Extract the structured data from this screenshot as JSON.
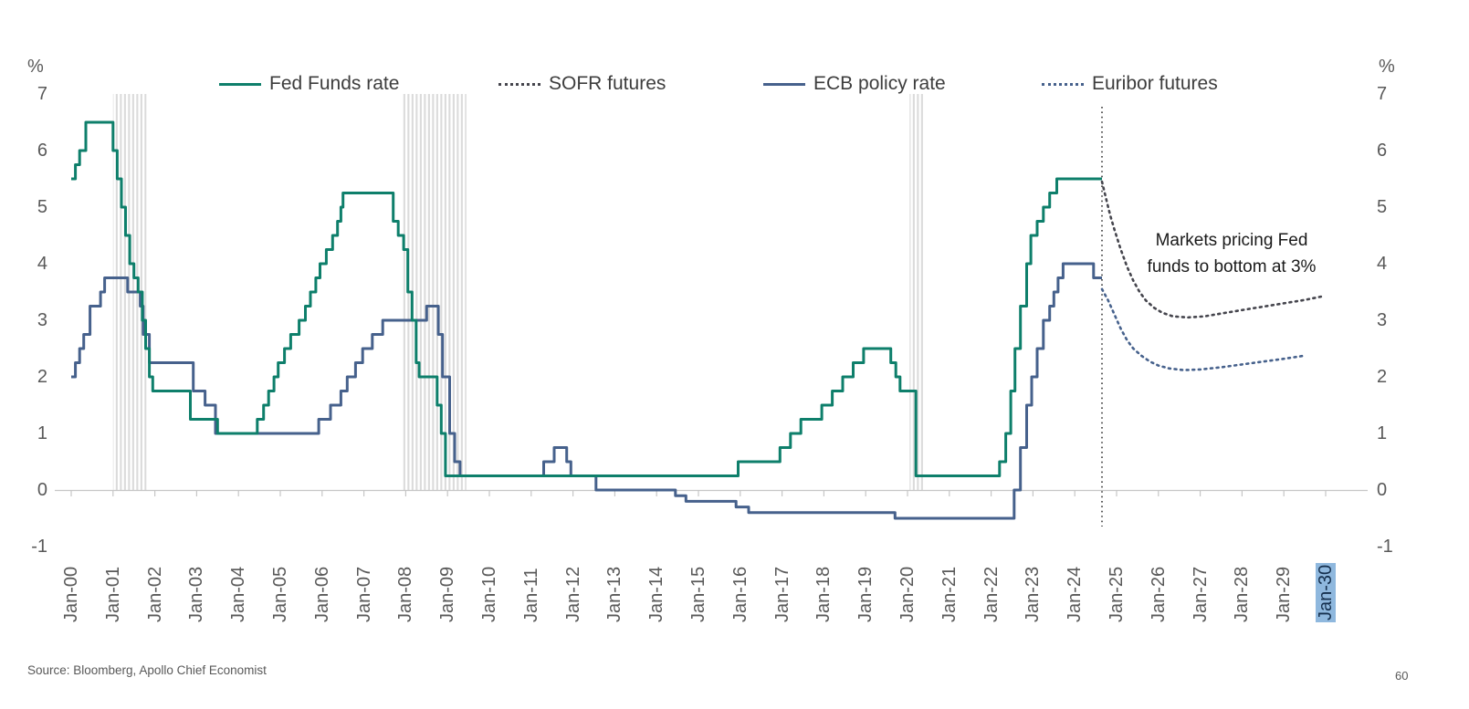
{
  "page": {
    "source_note": "Source: Bloomberg, Apollo Chief Economist",
    "page_number": "60"
  },
  "legend": [
    {
      "label": "Fed Funds rate",
      "style": "solid",
      "color": "#0e7f6b"
    },
    {
      "label": "SOFR futures",
      "style": "dotted",
      "color": "#45454d"
    },
    {
      "label": "ECB policy rate",
      "style": "solid",
      "color": "#46618c"
    },
    {
      "label": "Euribor futures",
      "style": "dotted",
      "color": "#46618c"
    }
  ],
  "annotation": {
    "line1": "Markets pricing Fed",
    "line2": "funds to bottom at 3%"
  },
  "chart_data": {
    "type": "line",
    "y_axis": {
      "unit_label": "%",
      "min": -1,
      "max": 7,
      "ticks": [
        7,
        6,
        5,
        4,
        3,
        2,
        1,
        0,
        -1
      ]
    },
    "x_axis": {
      "ticks": [
        "Jan-00",
        "Jan-01",
        "Jan-02",
        "Jan-03",
        "Jan-04",
        "Jan-05",
        "Jan-06",
        "Jan-07",
        "Jan-08",
        "Jan-09",
        "Jan-10",
        "Jan-11",
        "Jan-12",
        "Jan-13",
        "Jan-14",
        "Jan-15",
        "Jan-16",
        "Jan-17",
        "Jan-18",
        "Jan-19",
        "Jan-20",
        "Jan-21",
        "Jan-22",
        "Jan-23",
        "Jan-24",
        "Jan-25",
        "Jan-26",
        "Jan-27",
        "Jan-28",
        "Jan-29",
        "Jan-30"
      ],
      "highlighted_tick": "Jan-30"
    },
    "recession_bands": [
      [
        2001.0,
        2001.8
      ],
      [
        2007.9,
        2009.45
      ],
      [
        2020.05,
        2020.4
      ]
    ],
    "forecast_divider": 2024.65,
    "grid": "zero-line-only",
    "legend_position": "top",
    "series": [
      {
        "name": "Fed Funds rate",
        "color": "#0e7f6b",
        "style": "solid",
        "step": true,
        "points": [
          [
            2000.0,
            5.5
          ],
          [
            2000.1,
            5.75
          ],
          [
            2000.2,
            6.0
          ],
          [
            2000.35,
            6.5
          ],
          [
            2001.0,
            6.0
          ],
          [
            2001.1,
            5.5
          ],
          [
            2001.2,
            5.0
          ],
          [
            2001.3,
            4.5
          ],
          [
            2001.4,
            4.0
          ],
          [
            2001.5,
            3.75
          ],
          [
            2001.6,
            3.5
          ],
          [
            2001.7,
            3.0
          ],
          [
            2001.78,
            2.5
          ],
          [
            2001.87,
            2.0
          ],
          [
            2001.95,
            1.75
          ],
          [
            2002.85,
            1.25
          ],
          [
            2003.5,
            1.0
          ],
          [
            2004.45,
            1.25
          ],
          [
            2004.6,
            1.5
          ],
          [
            2004.72,
            1.75
          ],
          [
            2004.85,
            2.0
          ],
          [
            2004.95,
            2.25
          ],
          [
            2005.1,
            2.5
          ],
          [
            2005.25,
            2.75
          ],
          [
            2005.45,
            3.0
          ],
          [
            2005.6,
            3.25
          ],
          [
            2005.72,
            3.5
          ],
          [
            2005.85,
            3.75
          ],
          [
            2005.95,
            4.0
          ],
          [
            2006.1,
            4.25
          ],
          [
            2006.25,
            4.5
          ],
          [
            2006.37,
            4.75
          ],
          [
            2006.45,
            5.0
          ],
          [
            2006.5,
            5.25
          ],
          [
            2007.7,
            4.75
          ],
          [
            2007.82,
            4.5
          ],
          [
            2007.95,
            4.25
          ],
          [
            2008.05,
            3.5
          ],
          [
            2008.15,
            3.0
          ],
          [
            2008.25,
            2.25
          ],
          [
            2008.32,
            2.0
          ],
          [
            2008.75,
            1.5
          ],
          [
            2008.85,
            1.0
          ],
          [
            2008.95,
            0.25
          ],
          [
            2015.95,
            0.5
          ],
          [
            2016.95,
            0.75
          ],
          [
            2017.2,
            1.0
          ],
          [
            2017.45,
            1.25
          ],
          [
            2017.95,
            1.5
          ],
          [
            2018.2,
            1.75
          ],
          [
            2018.45,
            2.0
          ],
          [
            2018.7,
            2.25
          ],
          [
            2018.95,
            2.5
          ],
          [
            2019.6,
            2.25
          ],
          [
            2019.72,
            2.0
          ],
          [
            2019.82,
            1.75
          ],
          [
            2020.2,
            0.25
          ],
          [
            2022.2,
            0.5
          ],
          [
            2022.35,
            1.0
          ],
          [
            2022.47,
            1.75
          ],
          [
            2022.57,
            2.5
          ],
          [
            2022.7,
            3.25
          ],
          [
            2022.85,
            4.0
          ],
          [
            2022.95,
            4.5
          ],
          [
            2023.1,
            4.75
          ],
          [
            2023.25,
            5.0
          ],
          [
            2023.4,
            5.25
          ],
          [
            2023.57,
            5.5
          ],
          [
            2024.65,
            5.5
          ]
        ]
      },
      {
        "name": "SOFR futures",
        "color": "#45454d",
        "style": "dotted",
        "step": false,
        "points": [
          [
            2024.65,
            5.45
          ],
          [
            2024.75,
            5.15
          ],
          [
            2024.85,
            4.85
          ],
          [
            2024.95,
            4.6
          ],
          [
            2025.1,
            4.25
          ],
          [
            2025.25,
            3.95
          ],
          [
            2025.4,
            3.7
          ],
          [
            2025.55,
            3.5
          ],
          [
            2025.7,
            3.35
          ],
          [
            2025.9,
            3.22
          ],
          [
            2026.1,
            3.13
          ],
          [
            2026.35,
            3.07
          ],
          [
            2026.7,
            3.05
          ],
          [
            2027.1,
            3.07
          ],
          [
            2027.5,
            3.12
          ],
          [
            2028.0,
            3.18
          ],
          [
            2028.5,
            3.24
          ],
          [
            2029.0,
            3.3
          ],
          [
            2029.5,
            3.36
          ],
          [
            2029.9,
            3.42
          ]
        ]
      },
      {
        "name": "ECB policy rate",
        "color": "#46618c",
        "style": "solid",
        "step": true,
        "points": [
          [
            2000.0,
            2.0
          ],
          [
            2000.1,
            2.25
          ],
          [
            2000.2,
            2.5
          ],
          [
            2000.3,
            2.75
          ],
          [
            2000.45,
            3.25
          ],
          [
            2000.7,
            3.5
          ],
          [
            2000.8,
            3.75
          ],
          [
            2001.35,
            3.5
          ],
          [
            2001.65,
            3.25
          ],
          [
            2001.72,
            2.75
          ],
          [
            2001.87,
            2.25
          ],
          [
            2002.92,
            1.75
          ],
          [
            2003.2,
            1.5
          ],
          [
            2003.45,
            1.0
          ],
          [
            2005.92,
            1.25
          ],
          [
            2006.2,
            1.5
          ],
          [
            2006.45,
            1.75
          ],
          [
            2006.6,
            2.0
          ],
          [
            2006.8,
            2.25
          ],
          [
            2006.97,
            2.5
          ],
          [
            2007.2,
            2.75
          ],
          [
            2007.45,
            3.0
          ],
          [
            2008.5,
            3.25
          ],
          [
            2008.78,
            2.75
          ],
          [
            2008.88,
            2.0
          ],
          [
            2009.05,
            1.0
          ],
          [
            2009.17,
            0.5
          ],
          [
            2009.3,
            0.25
          ],
          [
            2011.3,
            0.5
          ],
          [
            2011.55,
            0.75
          ],
          [
            2011.85,
            0.5
          ],
          [
            2011.95,
            0.25
          ],
          [
            2012.55,
            0.0
          ],
          [
            2014.45,
            -0.1
          ],
          [
            2014.7,
            -0.2
          ],
          [
            2015.9,
            -0.3
          ],
          [
            2016.2,
            -0.4
          ],
          [
            2019.7,
            -0.5
          ],
          [
            2022.55,
            0.0
          ],
          [
            2022.7,
            0.75
          ],
          [
            2022.85,
            1.5
          ],
          [
            2022.97,
            2.0
          ],
          [
            2023.1,
            2.5
          ],
          [
            2023.25,
            3.0
          ],
          [
            2023.4,
            3.25
          ],
          [
            2023.5,
            3.5
          ],
          [
            2023.6,
            3.75
          ],
          [
            2023.72,
            4.0
          ],
          [
            2024.45,
            3.75
          ],
          [
            2024.65,
            3.75
          ]
        ]
      },
      {
        "name": "Euribor futures",
        "color": "#46618c",
        "style": "dotted",
        "step": false,
        "points": [
          [
            2024.65,
            3.55
          ],
          [
            2024.8,
            3.35
          ],
          [
            2024.95,
            3.1
          ],
          [
            2025.1,
            2.85
          ],
          [
            2025.25,
            2.65
          ],
          [
            2025.4,
            2.5
          ],
          [
            2025.6,
            2.37
          ],
          [
            2025.8,
            2.27
          ],
          [
            2026.0,
            2.2
          ],
          [
            2026.25,
            2.15
          ],
          [
            2026.6,
            2.12
          ],
          [
            2027.0,
            2.13
          ],
          [
            2027.5,
            2.17
          ],
          [
            2028.0,
            2.22
          ],
          [
            2028.5,
            2.27
          ],
          [
            2029.0,
            2.32
          ],
          [
            2029.45,
            2.37
          ]
        ]
      }
    ]
  }
}
